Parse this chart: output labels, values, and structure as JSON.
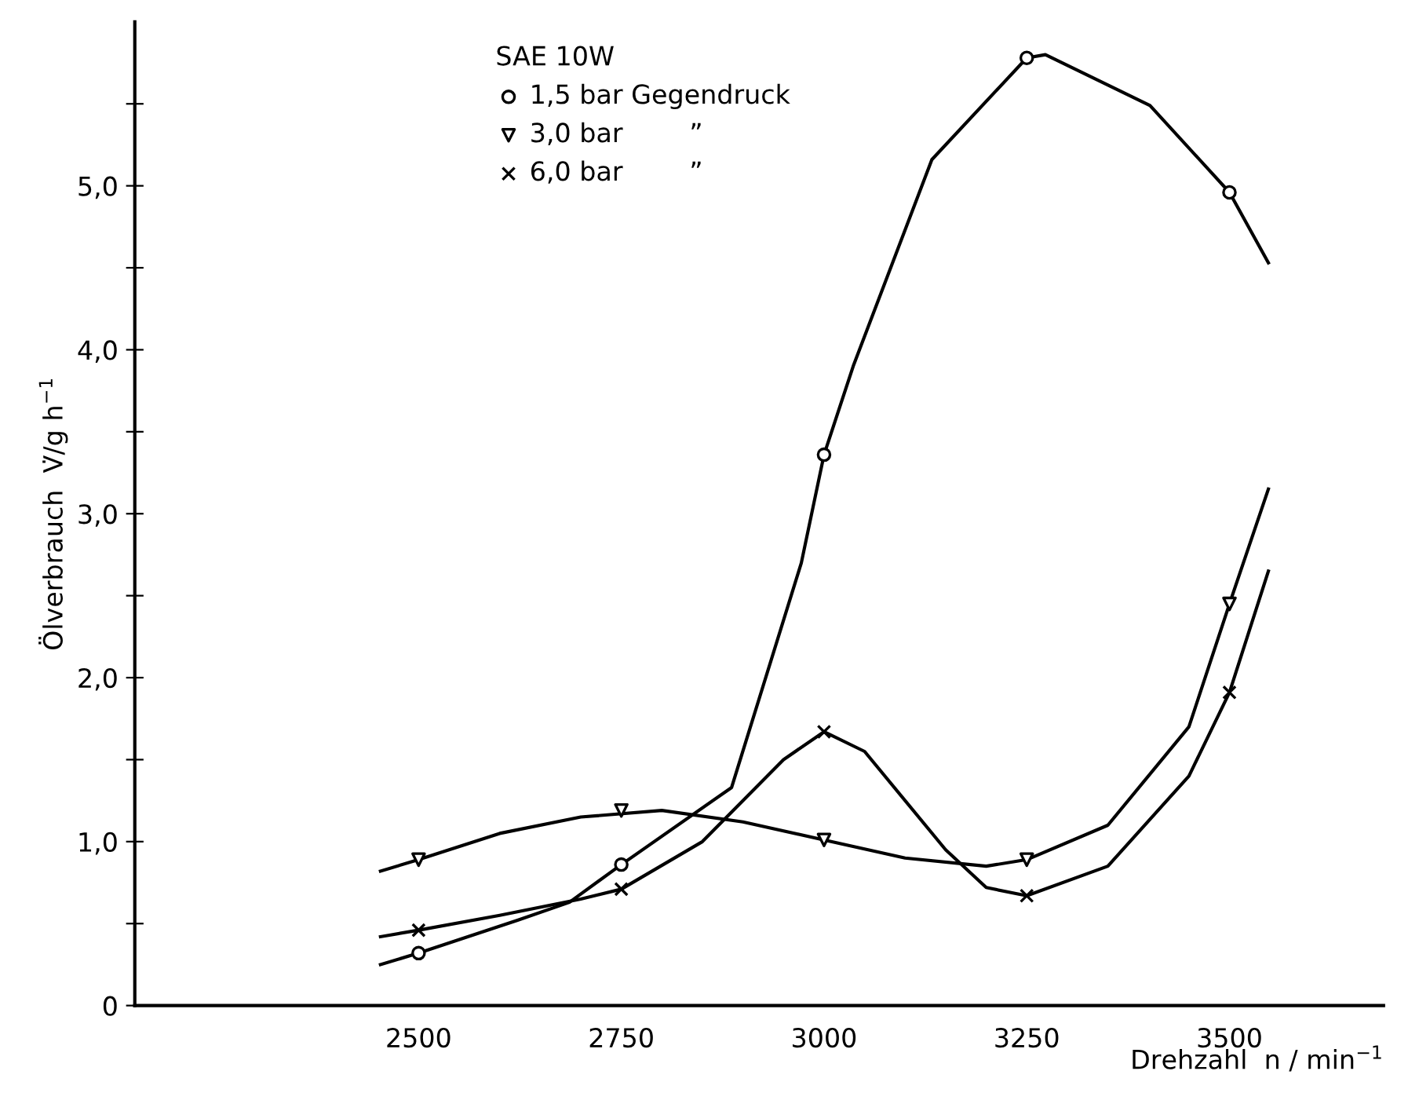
{
  "chart_data": {
    "type": "scatter",
    "xlabel": "Drehzahl  n / min$^{−1}$",
    "ylabel": "Ölverbrauch  V̇/g h$^{−1}$",
    "legend_title": "SAE 10W",
    "legend": "top left",
    "grid": false,
    "xlim": [
      2150,
      3690
    ],
    "ylim": [
      0,
      6.0
    ],
    "xticks": [
      2500,
      2750,
      3000,
      3250,
      3500
    ],
    "yticks": [
      {
        "value": 0,
        "label": "0"
      },
      {
        "value": 0.5,
        "label": null
      },
      {
        "value": 1.0,
        "label": "1,0"
      },
      {
        "value": 1.5,
        "label": null
      },
      {
        "value": 2.0,
        "label": "2,0"
      },
      {
        "value": 2.5,
        "label": null
      },
      {
        "value": 3.0,
        "label": "3,0"
      },
      {
        "value": 3.5,
        "label": null
      },
      {
        "value": 4.0,
        "label": "4,0"
      },
      {
        "value": 4.5,
        "label": null
      },
      {
        "value": 5.0,
        "label": "5,0"
      },
      {
        "value": 5.5,
        "label": null
      }
    ],
    "x": [
      2500,
      2750,
      3000,
      3250,
      3500
    ],
    "series": [
      {
        "name": "1,5 bar Gegendruck",
        "marker": "circle",
        "color": "#000000",
        "values": [
          0.32,
          0.86,
          3.36,
          5.78,
          4.96
        ]
      },
      {
        "name": "3,0 bar        ”",
        "marker": "triangle",
        "color": "#000000",
        "values": [
          0.89,
          1.19,
          1.01,
          0.89,
          2.45
        ]
      },
      {
        "name": "6,0 bar        ”",
        "marker": "cross",
        "color": "#000000",
        "values": [
          0.46,
          0.71,
          1.67,
          0.67,
          1.91
        ]
      },
      {
        "type": "line",
        "marker": "none",
        "color": "#000000",
        "x": [
          2453,
          2500,
          2622,
          2686,
          2750,
          2886,
          2972,
          3000,
          3036,
          3133,
          3250,
          3273,
          3402,
          3500,
          3548
        ],
        "values": [
          0.25,
          0.32,
          0.52,
          0.63,
          0.86,
          1.33,
          2.7,
          3.36,
          3.9,
          5.16,
          5.78,
          5.8,
          5.49,
          4.96,
          4.53
        ]
      },
      {
        "type": "line",
        "marker": "none",
        "color": "#000000",
        "x": [
          2453,
          2500,
          2600,
          2700,
          2800,
          2900,
          3000,
          3100,
          3200,
          3250,
          3350,
          3450,
          3500,
          3548
        ],
        "values": [
          0.82,
          0.89,
          1.05,
          1.15,
          1.19,
          1.12,
          1.01,
          0.9,
          0.85,
          0.89,
          1.1,
          1.7,
          2.45,
          3.15
        ]
      },
      {
        "type": "line",
        "marker": "none",
        "color": "#000000",
        "x": [
          2453,
          2500,
          2600,
          2700,
          2750,
          2850,
          2950,
          3000,
          3050,
          3150,
          3200,
          3250,
          3350,
          3450,
          3500,
          3548
        ],
        "values": [
          0.42,
          0.46,
          0.55,
          0.65,
          0.71,
          1.0,
          1.5,
          1.67,
          1.55,
          0.95,
          0.72,
          0.67,
          0.85,
          1.4,
          1.91,
          2.65
        ]
      }
    ]
  }
}
